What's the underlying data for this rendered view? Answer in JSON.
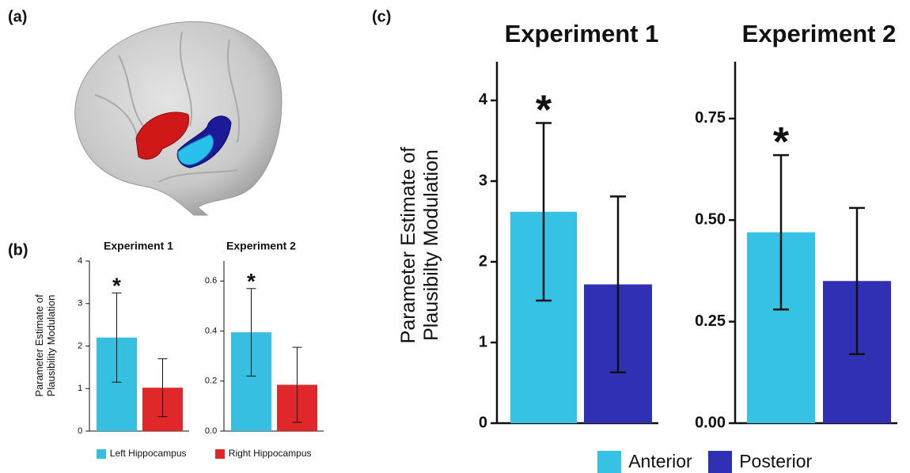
{
  "panel_labels": [
    "(a)",
    "(b)",
    "(c)"
  ],
  "chart_data": [
    {
      "type": "bar",
      "title": "Experiment 1",
      "y_label": [
        "Parameter Estimate of",
        "Plausibility Modulation"
      ],
      "ylim": [
        0,
        4
      ],
      "yticks": [
        0,
        1,
        2,
        3,
        4
      ],
      "annotation": "*",
      "series": [
        {
          "name": "Left Hippocampus",
          "color": "#36bfe0",
          "values": [
            2.2
          ],
          "errors": [
            1.05
          ]
        },
        {
          "name": "Right Hippocampus",
          "color": "#e0282a",
          "values": [
            1.02
          ],
          "errors": [
            0.68
          ]
        }
      ]
    },
    {
      "type": "bar",
      "title": "Experiment 2",
      "ylim": [
        0,
        0.68
      ],
      "yticks": [
        {
          "value": 0,
          "label": "0.0"
        },
        0.2,
        0.4,
        0.6
      ],
      "annotation": "*",
      "series": [
        {
          "name": "Left Hippocampus",
          "color": "#36bfe0",
          "values": [
            0.395
          ],
          "errors": [
            0.175
          ]
        },
        {
          "name": "Right Hippocampus",
          "color": "#e0282a",
          "values": [
            0.185
          ],
          "errors": [
            0.15
          ]
        }
      ]
    },
    {
      "type": "bar",
      "title": "Experiment 1",
      "y_label": [
        "Parameter Estimate of",
        "Plausibilty Modulation"
      ],
      "ylim": [
        0,
        4.48
      ],
      "yticks": [
        0,
        1,
        2,
        3,
        4
      ],
      "annotation": "*",
      "series": [
        {
          "name": "Anterior",
          "color": "#36c2e4",
          "values": [
            2.62
          ],
          "errors": [
            1.1
          ]
        },
        {
          "name": "Posterior",
          "color": "#3030b4",
          "values": [
            1.72
          ],
          "errors": [
            1.09
          ]
        }
      ]
    },
    {
      "type": "bar",
      "title": "Experiment 2",
      "ylim": [
        0,
        0.89
      ],
      "yticks": [
        {
          "value": 0,
          "label": "0.00"
        },
        0.25,
        {
          "value": 0.5,
          "label": "0.50"
        },
        0.75
      ],
      "annotation": "*",
      "series": [
        {
          "name": "Anterior",
          "color": "#36c2e4",
          "values": [
            0.47
          ],
          "errors": [
            0.19
          ]
        },
        {
          "name": "Posterior",
          "color": "#3030b4",
          "values": [
            0.35
          ],
          "errors": [
            0.18
          ]
        }
      ]
    }
  ]
}
